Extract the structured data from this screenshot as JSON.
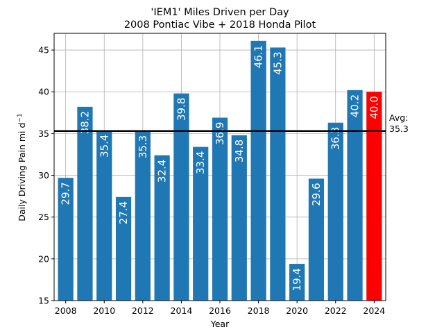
{
  "chart_data": {
    "type": "bar",
    "title": "'IEM1' Miles Driven per Day",
    "subtitle": "2008 Pontiac Vibe + 2018 Honda Pilot",
    "xlabel": "Year",
    "ylabel": "Daily Driving Pain mi d",
    "ylabel_superscript": "−1",
    "x": [
      2008,
      2009,
      2010,
      2011,
      2012,
      2013,
      2014,
      2015,
      2016,
      2017,
      2018,
      2019,
      2020,
      2021,
      2022,
      2023,
      2024
    ],
    "values": [
      29.7,
      38.2,
      35.4,
      27.4,
      35.3,
      32.4,
      39.8,
      33.4,
      36.9,
      34.8,
      46.1,
      45.3,
      19.4,
      29.6,
      36.3,
      40.2,
      40.0
    ],
    "data_labels": [
      "29.7",
      "38.2",
      "35.4",
      "27.4",
      "35.3",
      "32.4",
      "39.8",
      "33.4",
      "36.9",
      "34.8",
      "46.1",
      "45.3",
      "19.4",
      "29.6",
      "36.3",
      "40.2",
      "40.0"
    ],
    "x_ticks": [
      2008,
      2010,
      2012,
      2014,
      2016,
      2018,
      2020,
      2022,
      2024
    ],
    "x_tick_labels": [
      "2008",
      "2010",
      "2012",
      "2014",
      "2016",
      "2018",
      "2020",
      "2022",
      "2024"
    ],
    "y_ticks": [
      15,
      20,
      25,
      30,
      35,
      40,
      45
    ],
    "y_tick_labels": [
      "15",
      "20",
      "25",
      "30",
      "35",
      "40",
      "45"
    ],
    "ylim": [
      15,
      47
    ],
    "xlim": [
      2007.4,
      2024.6
    ],
    "grid": true,
    "bar_color": "#1f77b4",
    "highlight_color": "#ff0000",
    "highlight_x": 2024,
    "average": {
      "value": 35.3,
      "label_line1": "Avg:",
      "label_line2": "35.3",
      "color": "#000000"
    }
  }
}
